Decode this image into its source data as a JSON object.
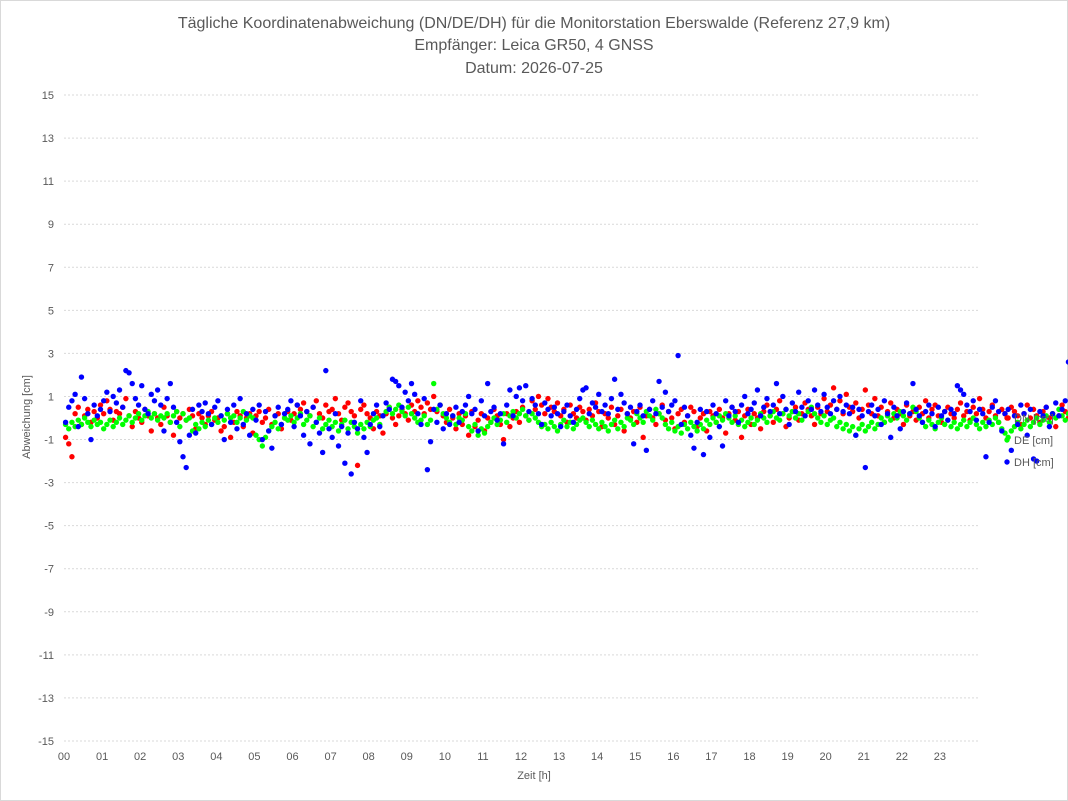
{
  "chart_data": {
    "type": "scatter",
    "title_lines": [
      "Tägliche Koordinatenabweichung (DN/DE/DH) für die Monitorstation Eberswalde (Referenz 27,9 km)",
      "Empfänger: Leica GR50, 4 GNSS",
      "Datum: 2026-07-25"
    ],
    "xlabel": "Zeit [h]",
    "ylabel": "Abweichung [cm]",
    "xlim": [
      0,
      24
    ],
    "ylim": [
      -15,
      15
    ],
    "yticks": [
      15,
      13,
      11,
      9,
      7,
      5,
      3,
      1,
      -1,
      -3,
      -5,
      -7,
      -9,
      -11,
      -13,
      -15
    ],
    "xtick_labels": [
      "00",
      "01",
      "02",
      "03",
      "04",
      "05",
      "06",
      "07",
      "08",
      "09",
      "10",
      "11",
      "12",
      "13",
      "14",
      "15",
      "16",
      "17",
      "18",
      "19",
      "20",
      "21",
      "22",
      "23"
    ],
    "grid": "horizontal dashed",
    "legend_position": "right",
    "points_per_hour": 12,
    "series": [
      {
        "name": "DN [cm]",
        "color": "#ff0000",
        "values": [
          -0.9,
          -1.2,
          -1.8,
          0.2,
          0.5,
          -0.3,
          0.1,
          0.4,
          -0.2,
          0.3,
          0.0,
          0.6,
          0.2,
          0.8,
          0.4,
          -0.1,
          0.3,
          0.2,
          0.5,
          0.9,
          0.1,
          -0.4,
          0.3,
          0.0,
          -0.2,
          0.4,
          0.1,
          -0.6,
          0.2,
          0.0,
          -0.3,
          0.5,
          0.1,
          -0.2,
          -0.8,
          0.3,
          0.0,
          0.2,
          -0.1,
          0.4,
          0.1,
          -0.5,
          0.2,
          0.0,
          -0.3,
          0.1,
          0.3,
          -0.1,
          0.0,
          -0.6,
          -0.4,
          0.2,
          -0.9,
          -0.2,
          0.3,
          0.1,
          -0.4,
          0.0,
          0.2,
          -0.7,
          0.1,
          0.3,
          -0.2,
          0.0,
          0.4,
          -0.3,
          0.1,
          0.2,
          -0.5,
          0.0,
          0.3,
          -0.1,
          0.2,
          0.6,
          0.4,
          0.7,
          0.3,
          0.1,
          0.5,
          0.8,
          0.2,
          0.0,
          0.6,
          0.3,
          0.4,
          0.9,
          0.2,
          -0.1,
          0.5,
          0.7,
          0.3,
          0.1,
          -2.2,
          0.4,
          0.6,
          0.2,
          0.0,
          -0.5,
          0.3,
          0.1,
          -0.7,
          0.2,
          0.5,
          0.0,
          -0.3,
          0.1,
          0.4,
          0.2,
          -0.1,
          0.6,
          0.3,
          0.8,
          0.5,
          0.2,
          0.7,
          0.4,
          1.0,
          0.3,
          0.6,
          0.1,
          -0.2,
          0.4,
          0.0,
          -0.5,
          0.2,
          -0.3,
          0.1,
          -0.8,
          0.3,
          -0.4,
          -0.1,
          0.2,
          -0.6,
          0.0,
          -0.2,
          0.4,
          0.1,
          -0.3,
          -1.0,
          0.2,
          -0.4,
          0.0,
          0.3,
          -0.2,
          0.5,
          0.1,
          -0.1,
          0.8,
          0.4,
          1.0,
          0.6,
          0.2,
          0.9,
          0.5,
          0.3,
          0.7,
          0.1,
          0.4,
          -0.2,
          0.6,
          0.2,
          0.0,
          0.5,
          0.3,
          -0.1,
          0.4,
          0.1,
          0.7,
          0.3,
          -0.4,
          0.2,
          0.0,
          0.5,
          -0.3,
          0.1,
          0.4,
          -0.6,
          0.2,
          0.0,
          0.3,
          -0.2,
          0.5,
          -0.9,
          0.1,
          0.4,
          0.0,
          -0.3,
          0.2,
          0.6,
          -0.1,
          0.3,
          0.0,
          -0.5,
          0.2,
          0.4,
          -0.2,
          0.1,
          0.5,
          0.3,
          -0.4,
          0.0,
          0.2,
          -0.6,
          0.3,
          0.1,
          -0.2,
          0.4,
          0.0,
          -0.7,
          0.2,
          0.5,
          -0.1,
          0.3,
          -0.9,
          0.1,
          0.4,
          -0.3,
          0.2,
          0.0,
          -0.5,
          0.3,
          0.6,
          0.1,
          -0.2,
          0.4,
          0.8,
          0.2,
          -0.4,
          0.0,
          0.3,
          0.5,
          -0.1,
          0.2,
          0.7,
          0.4,
          0.1,
          -0.3,
          0.5,
          0.2,
          0.9,
          0.3,
          0.6,
          1.4,
          0.4,
          0.8,
          0.2,
          1.1,
          0.5,
          0.3,
          0.7,
          0.0,
          0.4,
          1.3,
          0.6,
          0.2,
          0.9,
          0.1,
          0.5,
          -0.2,
          0.3,
          0.7,
          0.0,
          0.4,
          0.2,
          -0.3,
          0.6,
          0.1,
          0.3,
          -0.1,
          0.5,
          0.2,
          0.8,
          0.0,
          0.4,
          0.6,
          0.1,
          -0.2,
          0.3,
          0.5,
          0.2,
          0.0,
          0.4,
          0.7,
          0.1,
          0.3,
          -0.1,
          0.5,
          0.2,
          0.9,
          0.4,
          0.0,
          0.3,
          0.6,
          0.1,
          -0.2,
          0.4,
          0.2,
          0.0,
          0.5,
          0.3,
          0.1,
          -0.3,
          0.2,
          0.6,
          0.0,
          0.4,
          0.1,
          -0.2,
          0.3,
          0.5,
          0.0,
          0.2,
          -0.4,
          0.1,
          0.6,
          0.3,
          0.0,
          0.4,
          -0.1,
          0.2,
          0.5,
          0.7,
          0.3,
          0.1,
          0.6,
          0.4,
          0.9,
          0.2,
          0.5,
          1.1,
          0.3,
          0.7,
          0.1,
          0.4,
          0.8,
          0.6,
          0.2,
          0.5,
          0.9,
          1.2,
          0.4,
          0.7,
          0.3,
          0.6,
          0.1,
          0.4,
          -0.2,
          0.3,
          0.5,
          0.0,
          -0.4,
          0.2,
          -0.6,
          0.1,
          -0.9,
          -1.1,
          -1.2,
          -1.3,
          -0.8,
          -0.5,
          -1.4,
          -1.9,
          -1.2,
          -0.9,
          -1.0,
          -0.6,
          0.2,
          0.4,
          0.7,
          0.3,
          0.9,
          0.5,
          1.2,
          0.6,
          0.8,
          1.3,
          0.4,
          0.0
        ]
      },
      {
        "name": "DE [cm]",
        "color": "#00ff00",
        "values": [
          -0.3,
          -0.5,
          -0.2,
          -0.4,
          -0.1,
          -0.3,
          0.0,
          -0.2,
          -0.4,
          -0.1,
          -0.3,
          -0.2,
          -0.5,
          -0.3,
          -0.1,
          -0.4,
          -0.2,
          0.0,
          -0.3,
          -0.1,
          0.1,
          -0.2,
          0.0,
          0.2,
          -0.1,
          0.1,
          0.3,
          0.0,
          0.2,
          -0.1,
          0.1,
          0.0,
          0.2,
          -0.2,
          0.1,
          0.3,
          -0.4,
          0.2,
          -0.1,
          0.0,
          -0.6,
          -0.3,
          -0.5,
          -0.2,
          -0.4,
          -0.1,
          -0.3,
          0.0,
          -0.2,
          0.1,
          -0.1,
          0.2,
          0.0,
          0.1,
          -0.2,
          0.0,
          0.3,
          -0.1,
          0.1,
          0.0,
          -0.8,
          -1.0,
          -1.3,
          -0.9,
          -0.6,
          -0.4,
          -0.2,
          -0.5,
          -0.3,
          0.0,
          -0.1,
          0.1,
          -0.2,
          0.0,
          0.2,
          -0.3,
          -0.1,
          0.1,
          -0.4,
          -0.2,
          0.0,
          -0.5,
          -0.3,
          -0.1,
          -0.4,
          -0.2,
          -0.6,
          -0.3,
          -0.1,
          -0.5,
          -0.2,
          -0.4,
          -0.7,
          -0.3,
          -0.5,
          -0.2,
          -0.4,
          -0.1,
          0.0,
          -0.3,
          0.1,
          0.3,
          0.5,
          0.2,
          0.4,
          0.6,
          0.3,
          0.1,
          0.5,
          0.2,
          0.0,
          -0.2,
          -0.1,
          0.1,
          -0.3,
          -0.1,
          1.6,
          0.4,
          0.6,
          0.2,
          0.0,
          -0.2,
          0.1,
          -0.3,
          0.0,
          -0.1,
          0.2,
          -0.4,
          -0.6,
          -0.3,
          -0.8,
          -0.5,
          -0.7,
          -0.4,
          -0.2,
          0.0,
          -0.3,
          -0.1,
          0.2,
          -0.2,
          0.1,
          0.3,
          0.0,
          0.2,
          0.4,
          0.1,
          -0.1,
          0.2,
          0.0,
          -0.2,
          -0.4,
          -0.3,
          -0.5,
          -0.2,
          -0.4,
          -0.6,
          -0.3,
          -0.1,
          -0.4,
          -0.2,
          -0.5,
          -0.3,
          -0.1,
          0.0,
          -0.2,
          -0.4,
          -0.1,
          -0.3,
          -0.5,
          -0.2,
          -0.4,
          -0.6,
          -0.3,
          -0.1,
          -0.5,
          -0.2,
          -0.4,
          0.0,
          -0.1,
          -0.3,
          0.2,
          0.0,
          -0.2,
          0.3,
          0.1,
          -0.1,
          0.4,
          0.2,
          0.0,
          -0.3,
          -0.5,
          -0.2,
          -0.6,
          -0.4,
          -0.7,
          -0.3,
          -0.5,
          -0.2,
          -0.4,
          -0.6,
          -0.3,
          -0.5,
          -0.1,
          -0.3,
          0.0,
          -0.2,
          0.1,
          -0.1,
          0.2,
          0.0,
          -0.2,
          0.1,
          -0.3,
          -0.1,
          -0.4,
          -0.2,
          0.0,
          -0.3,
          -0.1,
          0.2,
          0.0,
          -0.2,
          0.1,
          0.3,
          0.0,
          -0.1,
          0.2,
          0.4,
          0.1,
          0.3,
          0.0,
          0.2,
          -0.1,
          0.1,
          0.3,
          0.5,
          0.2,
          0.0,
          -0.2,
          0.1,
          -0.3,
          -0.1,
          0.0,
          -0.4,
          -0.2,
          -0.5,
          -0.3,
          -0.6,
          -0.4,
          -0.8,
          -0.5,
          -0.3,
          -0.6,
          -0.4,
          -0.2,
          -0.5,
          -0.3,
          0.0,
          -0.2,
          0.1,
          -0.1,
          0.2,
          0.0,
          0.3,
          0.1,
          -0.1,
          0.2,
          0.5,
          0.3,
          0.0,
          -0.2,
          -0.4,
          -0.1,
          -0.3,
          -0.5,
          -0.2,
          0.0,
          -0.3,
          -0.1,
          -0.4,
          -0.2,
          -0.5,
          -0.3,
          -0.1,
          -0.4,
          -0.2,
          0.0,
          -0.3,
          -0.5,
          -0.2,
          -0.4,
          -0.1,
          -0.3,
          0.0,
          -0.2,
          -0.5,
          -0.7,
          -0.9,
          -0.6,
          -0.4,
          -0.2,
          -0.5,
          -0.3,
          -0.1,
          -0.4,
          -0.2,
          0.0,
          -0.3,
          -0.1,
          0.1,
          -0.2,
          0.2,
          0.0,
          0.4,
          0.1,
          -0.1,
          0.2,
          0.6,
          0.3,
          0.0,
          0.5,
          0.2,
          -0.1,
          0.3,
          0.1,
          -0.2,
          0.0,
          0.2,
          -0.4,
          -0.6,
          -0.3,
          -0.8,
          -0.5,
          -0.2,
          -0.4,
          -0.1,
          0.0,
          -0.3,
          0.2,
          0.0,
          -0.2,
          0.4,
          0.1,
          -0.1,
          0.3,
          0.0,
          -0.3,
          -0.6,
          -0.8,
          -1.0,
          -0.7,
          -0.4,
          -0.2,
          -0.5,
          -0.3,
          -0.1,
          0.1,
          0.3,
          0.5,
          0.2,
          0.4,
          0.0,
          -0.2,
          -0.4,
          -0.3,
          -0.5,
          -0.2,
          -0.4,
          -0.3,
          -0.6,
          -0.4,
          -0.2,
          -0.5,
          -0.3,
          -0.4,
          -0.6,
          -0.8,
          -1.0,
          -0.7,
          -0.5,
          -0.3,
          -0.2
        ]
      },
      {
        "name": "DH [cm]",
        "color": "#0000ff",
        "values": [
          -0.2,
          0.5,
          0.8,
          1.1,
          -0.4,
          1.9,
          0.9,
          0.2,
          -1.0,
          0.6,
          0.1,
          0.4,
          0.8,
          1.2,
          0.3,
          1.0,
          0.7,
          1.3,
          0.5,
          2.2,
          2.1,
          1.6,
          0.9,
          0.6,
          1.5,
          0.4,
          0.2,
          1.1,
          0.8,
          1.3,
          0.6,
          -0.6,
          0.9,
          1.6,
          0.5,
          -0.2,
          -1.1,
          -1.8,
          -2.3,
          -0.8,
          0.4,
          -0.7,
          0.6,
          0.3,
          0.7,
          0.2,
          -0.3,
          0.5,
          0.8,
          0.1,
          -1.0,
          0.4,
          -0.2,
          0.6,
          -0.5,
          0.9,
          -0.3,
          0.2,
          -0.8,
          0.4,
          -0.1,
          0.6,
          -1.0,
          0.3,
          -0.6,
          -1.4,
          0.1,
          0.5,
          -0.3,
          0.2,
          0.4,
          0.8,
          -0.4,
          0.6,
          0.1,
          -0.8,
          0.3,
          -1.2,
          0.5,
          -0.2,
          -0.7,
          -1.6,
          2.2,
          -0.5,
          -0.9,
          0.2,
          -1.3,
          -0.4,
          -2.1,
          -0.7,
          -2.6,
          -0.2,
          -0.5,
          0.8,
          -0.9,
          -1.6,
          -0.3,
          0.2,
          0.6,
          -0.4,
          0.1,
          0.7,
          0.4,
          1.8,
          1.7,
          1.5,
          0.5,
          1.2,
          0.8,
          1.6,
          1.1,
          0.2,
          -0.3,
          0.9,
          -2.4,
          -1.1,
          0.4,
          -0.2,
          0.6,
          -0.5,
          0.2,
          -0.3,
          0.1,
          0.5,
          -0.2,
          0.3,
          0.6,
          1.0,
          0.2,
          0.4,
          -0.6,
          0.8,
          0.1,
          1.6,
          0.3,
          0.5,
          -0.1,
          0.2,
          -1.2,
          0.6,
          1.3,
          0.1,
          1.0,
          1.4,
          0.8,
          1.5,
          0.3,
          0.9,
          0.6,
          0.2,
          -0.3,
          0.7,
          0.4,
          0.1,
          0.5,
          0.2,
          -0.4,
          0.3,
          0.6,
          0.1,
          -0.2,
          0.4,
          0.9,
          1.3,
          1.4,
          0.2,
          0.7,
          0.5,
          1.1,
          0.3,
          0.6,
          0.2,
          0.9,
          1.8,
          0.4,
          1.1,
          0.7,
          0.2,
          0.5,
          -1.2,
          0.3,
          0.6,
          0.1,
          -1.5,
          0.4,
          0.8,
          0.2,
          1.7,
          0.5,
          1.2,
          0.3,
          0.6,
          0.8,
          2.9,
          -0.3,
          0.5,
          0.1,
          -0.8,
          -1.4,
          -0.2,
          0.4,
          -1.7,
          0.3,
          -0.9,
          0.6,
          0.2,
          -0.4,
          -1.3,
          0.8,
          0.1,
          0.5,
          0.3,
          -0.2,
          0.6,
          1.0,
          0.2,
          0.4,
          0.7,
          1.3,
          0.1,
          0.5,
          0.9,
          0.3,
          0.6,
          1.6,
          0.2,
          1.0,
          0.4,
          -0.3,
          0.7,
          0.3,
          1.2,
          0.5,
          0.1,
          0.8,
          0.4,
          1.3,
          0.6,
          0.3,
          1.1,
          0.5,
          0.2,
          0.8,
          0.4,
          1.0,
          0.3,
          0.6,
          0.2,
          0.5,
          -0.8,
          0.4,
          0.1,
          -2.3,
          0.3,
          0.6,
          0.1,
          0.4,
          -0.3,
          0.8,
          0.2,
          -0.9,
          0.5,
          0.1,
          -0.5,
          0.3,
          0.7,
          0.2,
          1.6,
          0.4,
          0.1,
          -0.2,
          0.3,
          0.6,
          0.2,
          -0.4,
          0.5,
          0.1,
          0.3,
          -0.1,
          0.4,
          0.2,
          1.5,
          1.3,
          1.1,
          0.6,
          0.3,
          0.8,
          -0.1,
          0.4,
          0.2,
          -1.8,
          -0.2,
          0.5,
          0.8,
          0.3,
          -0.6,
          0.2,
          0.4,
          -1.5,
          0.1,
          -0.3,
          0.6,
          0.2,
          -0.8,
          0.4,
          -1.9,
          -2.0,
          0.3,
          0.1,
          0.5,
          -0.4,
          0.2,
          0.7,
          0.1,
          0.4,
          0.8,
          2.6,
          0.3,
          0.6,
          1.6,
          1.2,
          0.5,
          0.9,
          0.4,
          -0.5,
          -1.4,
          0.3,
          1.0,
          0.1,
          0.6,
          0.2,
          0.9,
          0.4,
          -0.7,
          0.3,
          0.8,
          0.5,
          1.2,
          0.2,
          0.7,
          2.4,
          1.5,
          1.9,
          1.1,
          0.6,
          1.3,
          1.7,
          0.9,
          1.4,
          1.8,
          0.5,
          1.2,
          0.3,
          -0.2,
          0.5,
          0.8,
          0.1,
          0.4,
          0.2,
          -0.1,
          0.3,
          0.6,
          0.1,
          -0.3,
          0.4,
          0.2,
          -0.1,
          0.3,
          0.6,
          0.1,
          -0.2,
          0.4,
          0.2,
          -0.4,
          0.1,
          -0.6,
          0.3,
          0.0,
          -0.2
        ]
      }
    ]
  }
}
